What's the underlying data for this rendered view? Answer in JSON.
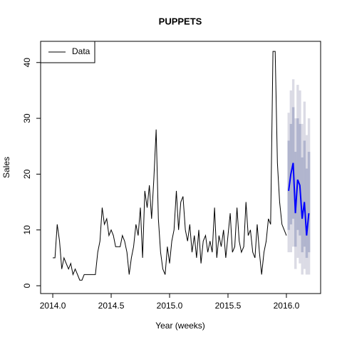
{
  "chart_data": {
    "type": "line",
    "title": "PUPPETS",
    "xlabel": "Year (weeks)",
    "ylabel": "Sales",
    "legend": "topleft",
    "xlim": [
      2013.896,
      2016.293
    ],
    "ylim": [
      -1.4,
      43.8
    ],
    "xticks": [
      {
        "value": 2014,
        "label": "2014.0"
      },
      2014.5,
      {
        "value": 2015,
        "label": "2015.0"
      },
      2015.5,
      {
        "value": 2016,
        "label": "2016.0"
      }
    ],
    "yticks": [
      0,
      10,
      20,
      30,
      40
    ],
    "series": [
      {
        "name": "Data",
        "color": "#000000",
        "x": [
          2014,
          2014.019,
          2014.038,
          2014.058,
          2014.077,
          2014.096,
          2014.115,
          2014.135,
          2014.154,
          2014.173,
          2014.192,
          2014.212,
          2014.231,
          2014.25,
          2014.269,
          2014.288,
          2014.308,
          2014.327,
          2014.346,
          2014.365,
          2014.385,
          2014.404,
          2014.423,
          2014.442,
          2014.462,
          2014.481,
          2014.5,
          2014.519,
          2014.538,
          2014.558,
          2014.577,
          2014.596,
          2014.615,
          2014.635,
          2014.654,
          2014.673,
          2014.692,
          2014.712,
          2014.731,
          2014.75,
          2014.769,
          2014.788,
          2014.808,
          2014.827,
          2014.846,
          2014.865,
          2014.885,
          2014.904,
          2014.923,
          2014.942,
          2014.962,
          2014.981,
          2015,
          2015.019,
          2015.038,
          2015.058,
          2015.077,
          2015.096,
          2015.115,
          2015.135,
          2015.154,
          2015.173,
          2015.192,
          2015.212,
          2015.231,
          2015.25,
          2015.269,
          2015.288,
          2015.308,
          2015.327,
          2015.346,
          2015.365,
          2015.385,
          2015.404,
          2015.423,
          2015.442,
          2015.462,
          2015.481,
          2015.5,
          2015.519,
          2015.538,
          2015.558,
          2015.577,
          2015.596,
          2015.615,
          2015.635,
          2015.654,
          2015.673,
          2015.692,
          2015.712,
          2015.731,
          2015.75,
          2015.769,
          2015.788,
          2015.808,
          2015.827,
          2015.846,
          2015.865,
          2015.885,
          2015.904,
          2015.923,
          2015.942,
          2015.962,
          2015.981,
          2016
        ],
        "values": [
          5,
          5,
          11,
          8,
          3,
          5,
          4,
          3,
          4,
          2,
          3,
          2,
          1,
          1,
          2,
          2,
          2,
          2,
          2,
          2,
          6,
          8,
          14,
          11,
          12,
          9,
          10,
          9,
          7,
          7,
          7,
          9,
          8,
          6,
          2,
          5,
          7,
          11,
          9,
          14,
          5,
          17,
          14,
          18,
          12,
          19,
          28,
          12,
          6,
          3,
          2,
          7,
          4,
          8,
          10,
          17,
          10,
          15,
          16,
          10,
          8,
          11,
          6,
          9,
          5,
          10,
          4,
          8,
          9,
          6,
          8,
          6,
          14,
          5,
          9,
          7,
          10,
          5,
          9,
          13,
          6,
          7,
          14,
          8,
          6,
          7,
          15,
          9,
          10,
          6,
          5,
          11,
          6,
          2,
          6,
          8,
          12,
          11,
          42,
          42,
          22,
          15,
          11,
          10,
          9
        ]
      }
    ],
    "forecast": {
      "color": "#0000ff",
      "band_80_color": "#b1b5ce",
      "band_95_color": "#dbdbe5",
      "x": [
        2016.019,
        2016.038,
        2016.058,
        2016.077,
        2016.096,
        2016.115,
        2016.135,
        2016.154,
        2016.173,
        2016.192
      ],
      "values": [
        17,
        20,
        22,
        13,
        19,
        18,
        12,
        15,
        9,
        13
      ],
      "lower_80": [
        10,
        11,
        12,
        7,
        10,
        9,
        6,
        7,
        5,
        6
      ],
      "upper_80": [
        26,
        29,
        32,
        24,
        30,
        29,
        23,
        26,
        21,
        24
      ],
      "lower_95": [
        6,
        6,
        7,
        3,
        5,
        4,
        2,
        3,
        2,
        2
      ],
      "upper_95": [
        31,
        35,
        37,
        30,
        36,
        35,
        29,
        33,
        27,
        30
      ]
    }
  }
}
